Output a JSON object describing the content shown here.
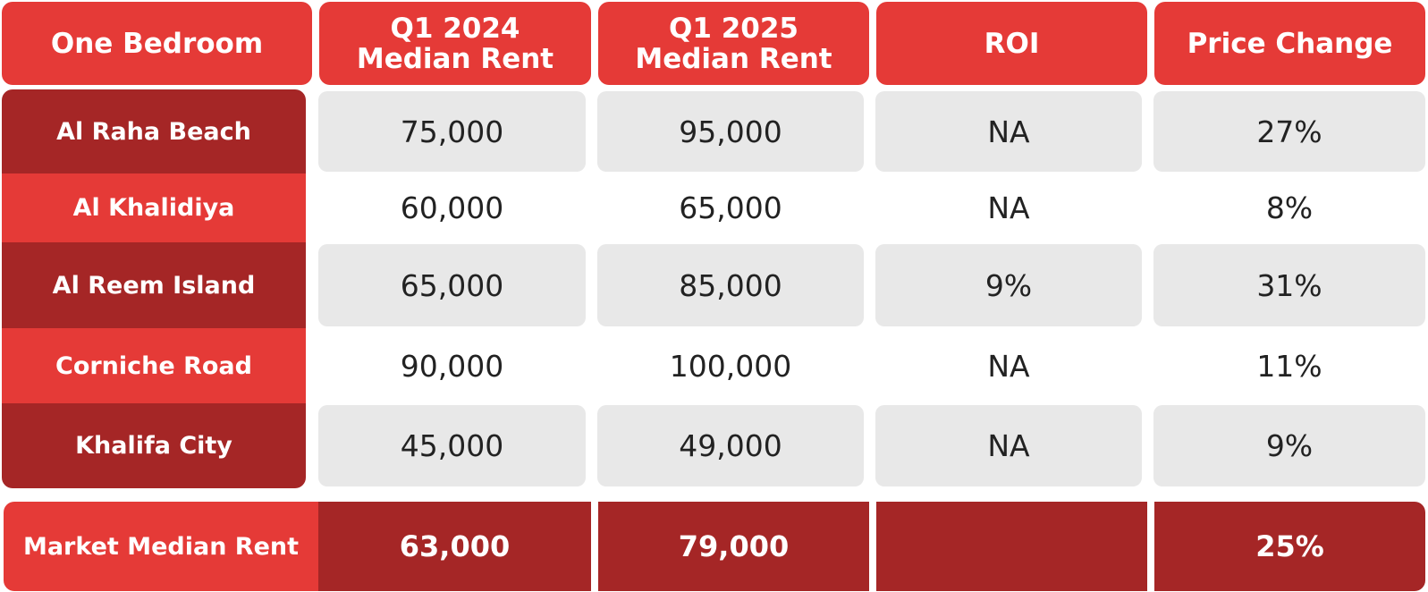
{
  "table": {
    "header": [
      "One Bedroom",
      "Q1 2024\nMedian Rent",
      "Q1 2025\nMedian Rent",
      "ROI",
      "Price Change"
    ],
    "rows": [
      [
        "Al Raha Beach",
        "75,000",
        "95,000",
        "NA",
        "27%"
      ],
      [
        "Al Khalidiya",
        "60,000",
        "65,000",
        "NA",
        "8%"
      ],
      [
        "Al Reem Island",
        "65,000",
        "85,000",
        "9%",
        "31%"
      ],
      [
        "Corniche Road",
        "90,000",
        "100,000",
        "NA",
        "11%"
      ],
      [
        "Khalifa City",
        "45,000",
        "49,000",
        "NA",
        "9%"
      ]
    ],
    "footer": {
      "label": "Market Median Rent",
      "q1_2024": "63,000",
      "q1_2025": "79,000",
      "price_change": "25%"
    }
  }
}
